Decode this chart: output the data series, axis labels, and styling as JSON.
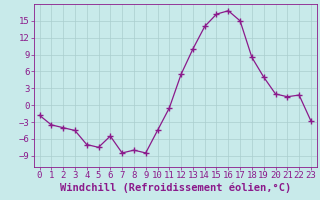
{
  "hours": [
    0,
    1,
    2,
    3,
    4,
    5,
    6,
    7,
    8,
    9,
    10,
    11,
    12,
    13,
    14,
    15,
    16,
    17,
    18,
    19,
    20,
    21,
    22,
    23
  ],
  "values": [
    -1.8,
    -3.5,
    -4.0,
    -4.5,
    -7.0,
    -7.5,
    -5.5,
    -8.5,
    -8.0,
    -8.5,
    -4.5,
    -0.5,
    5.5,
    10.0,
    14.0,
    16.2,
    16.8,
    15.0,
    8.5,
    5.0,
    2.0,
    1.5,
    1.8,
    -2.8
  ],
  "line_color": "#8b1a8b",
  "marker": "+",
  "marker_size": 4,
  "marker_linewidth": 1.0,
  "linewidth": 0.9,
  "background_color": "#c8eaea",
  "grid_color": "#aacece",
  "xlabel": "Windchill (Refroidissement éolien,°C)",
  "ylim": [
    -11,
    18
  ],
  "xlim": [
    -0.5,
    23.5
  ],
  "yticks": [
    -9,
    -6,
    -3,
    0,
    3,
    6,
    9,
    12,
    15
  ],
  "xticks": [
    0,
    1,
    2,
    3,
    4,
    5,
    6,
    7,
    8,
    9,
    10,
    11,
    12,
    13,
    14,
    15,
    16,
    17,
    18,
    19,
    20,
    21,
    22,
    23
  ],
  "tick_fontsize": 6.5,
  "xlabel_fontsize": 7.5
}
